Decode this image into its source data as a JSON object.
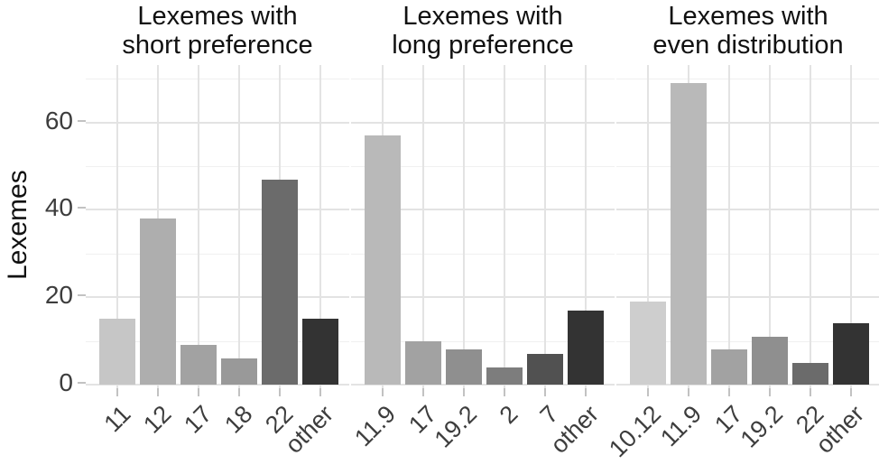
{
  "chart_data": {
    "type": "bar",
    "title": "",
    "ylabel": "Lexemes",
    "xlabel": "",
    "y_ticks": [
      0,
      20,
      40,
      60
    ],
    "y_minor_ticks": [
      10,
      30,
      50,
      70
    ],
    "ylim": [
      0,
      73
    ],
    "grid": "on",
    "legend": "none",
    "facets": [
      {
        "title_lines": [
          "Lexemes with",
          "short preference"
        ],
        "categories": [
          "11",
          "12",
          "17",
          "18",
          "22",
          "other"
        ],
        "values": [
          15,
          38,
          9,
          6,
          47,
          15
        ]
      },
      {
        "title_lines": [
          "Lexemes with",
          "long preference"
        ],
        "categories": [
          "11.9",
          "17",
          "19.2",
          "2",
          "7",
          "other"
        ],
        "values": [
          57,
          10,
          8,
          4,
          7,
          17
        ]
      },
      {
        "title_lines": [
          "Lexemes with",
          "even distribution"
        ],
        "categories": [
          "10.12",
          "11.9",
          "17",
          "19.2",
          "22",
          "other"
        ],
        "values": [
          19,
          69,
          8,
          11,
          5,
          14
        ]
      }
    ],
    "bar_colors": {
      "10.12": "#cecece",
      "11": "#c6c6c6",
      "11.9": "#b9b9b9",
      "12": "#aeaeae",
      "17": "#a2a2a2",
      "18": "#999999",
      "19.2": "#8f8f8f",
      "2": "#7d7d7d",
      "22": "#6b6b6b",
      "7": "#515151",
      "other": "#333333"
    },
    "colors": {
      "background": "#ffffff",
      "grid_major": "#e3e3e3",
      "grid_minor": "#f0f0f0",
      "tick_mark": "#c2c2c2",
      "tick_label": "#3d3d3d",
      "title_text": "#111111"
    }
  }
}
